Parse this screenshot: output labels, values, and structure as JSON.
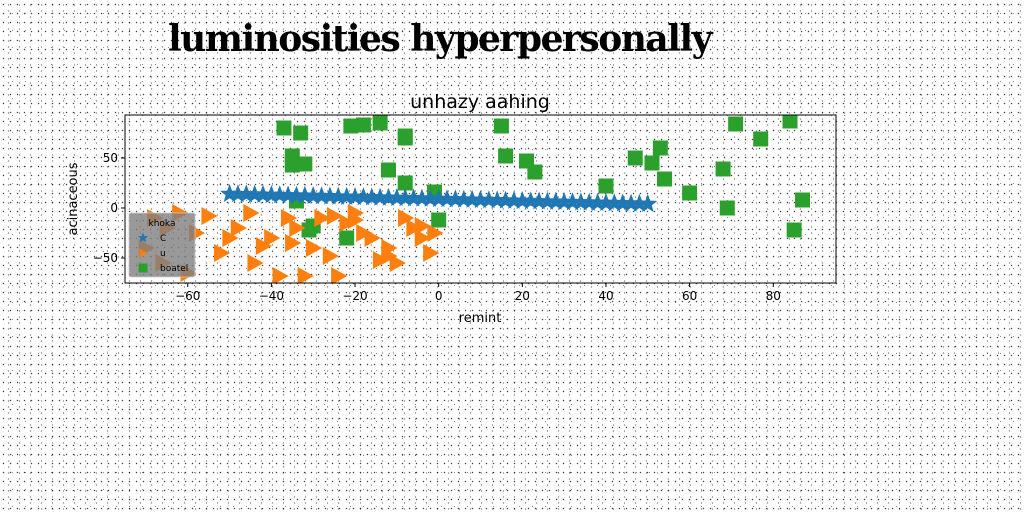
{
  "page_title": "luminosities hyperpersonally",
  "chart_data": {
    "type": "scatter",
    "title": "unhazy aahing",
    "xlabel": "remint",
    "ylabel": "acinaceous",
    "xlim": [
      -75,
      95
    ],
    "ylim": [
      -75,
      93
    ],
    "xticks": [
      -60,
      -40,
      -20,
      0,
      20,
      40,
      60,
      80
    ],
    "yticks": [
      -50,
      0,
      50
    ],
    "grid": false,
    "legend": {
      "title": "khoka",
      "placement": "lower-left"
    },
    "series": [
      {
        "name": "C",
        "marker": "star",
        "color": "#1f77b4",
        "x": [
          -50,
          -48,
          -46,
          -44,
          -42,
          -40,
          -38,
          -36,
          -34,
          -32,
          -30,
          -28,
          -26,
          -24,
          -22,
          -20,
          -18,
          -16,
          -14,
          -12,
          -10,
          -8,
          -6,
          -4,
          -2,
          0,
          2,
          4,
          6,
          8,
          10,
          12,
          14,
          16,
          18,
          20,
          22,
          24,
          26,
          28,
          30,
          32,
          34,
          36,
          38,
          40,
          42,
          44,
          46,
          48,
          50
        ],
        "y": [
          14,
          13.8,
          13.6,
          13.4,
          13.2,
          13,
          12.8,
          12.6,
          12.4,
          12.2,
          12,
          11.8,
          11.6,
          11.4,
          11.2,
          11,
          10.8,
          10.6,
          10.4,
          10.2,
          10,
          9.8,
          9.6,
          9.4,
          9.2,
          9,
          8.8,
          8.6,
          8.4,
          8.2,
          8,
          7.8,
          7.6,
          7.4,
          7.2,
          7,
          6.8,
          6.6,
          6.4,
          6.2,
          6,
          5.8,
          5.6,
          5.4,
          5.2,
          5,
          4.8,
          4.6,
          4.4,
          4.2,
          4
        ]
      },
      {
        "name": "u",
        "marker": "triangle-right",
        "color": "#ff7f0e",
        "x": [
          -68,
          -65,
          -62,
          -70,
          -58,
          -55,
          -52,
          -48,
          -45,
          -44,
          -40,
          -38,
          -36,
          -34,
          -32,
          -30,
          -28,
          -26,
          -24,
          -22,
          -20,
          -18,
          -16,
          -14,
          -12,
          -10,
          -8,
          -6,
          -4,
          -2,
          -1,
          -66,
          -60,
          -42,
          -25,
          -12,
          -4,
          -35,
          -20,
          -50
        ],
        "y": [
          -10,
          -20,
          -5,
          -40,
          -25,
          -8,
          -45,
          -20,
          -5,
          -55,
          -30,
          -68,
          -10,
          -20,
          -68,
          -40,
          -10,
          -48,
          -68,
          -15,
          -5,
          -25,
          -30,
          -52,
          -40,
          -55,
          -10,
          -20,
          -30,
          -45,
          -25,
          -55,
          -65,
          -38,
          -8,
          -48,
          -18,
          -35,
          -12,
          -30
        ]
      },
      {
        "name": "boatel",
        "marker": "square",
        "color": "#2ca02c",
        "x": [
          -37,
          -35,
          -33,
          -32,
          -35,
          -30,
          -21,
          -18,
          -14,
          -12,
          -8,
          -8,
          -1,
          0,
          15,
          16,
          21,
          23,
          40,
          47,
          51,
          53,
          54,
          60,
          68,
          69,
          71,
          77,
          84,
          85,
          87,
          -34,
          -31,
          -22,
          -8
        ],
        "y": [
          80,
          52,
          75,
          44,
          43,
          -18,
          82,
          83,
          85,
          38,
          72,
          25,
          16,
          -12,
          82,
          52,
          47,
          36,
          22,
          50,
          45,
          60,
          29,
          15,
          39,
          0,
          84,
          69,
          87,
          -22,
          8,
          7,
          -22,
          -30,
          70
        ]
      }
    ]
  }
}
